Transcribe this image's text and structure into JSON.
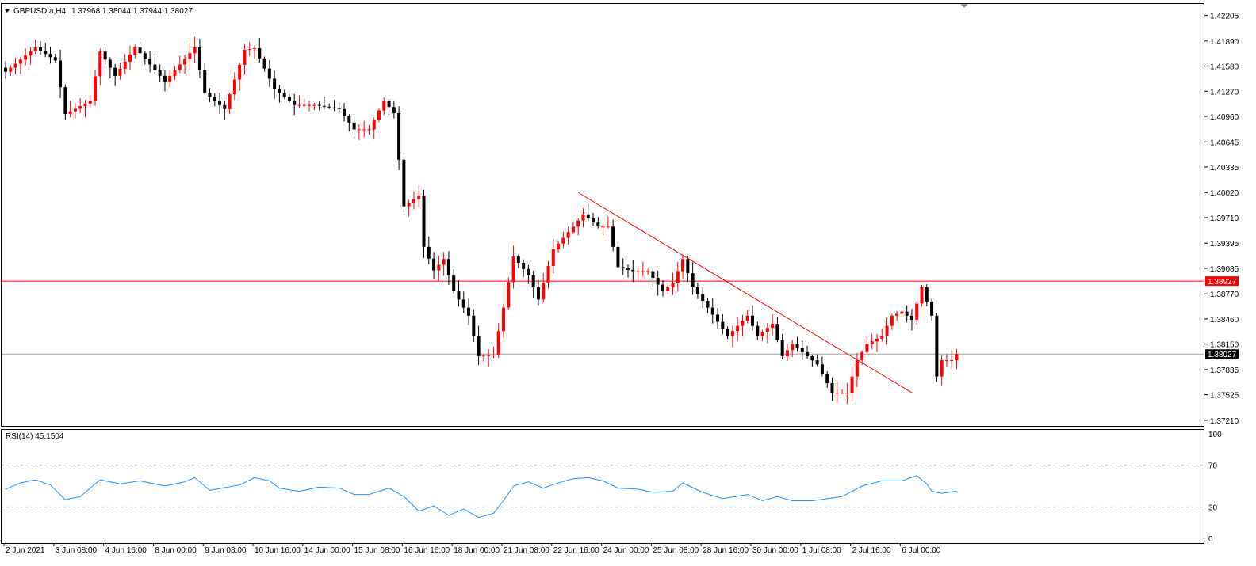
{
  "header": {
    "symbol": "GBPUSD.a,H4",
    "ohlc": "1.37968 1.38044 1.37944 1.38027"
  },
  "rsi": {
    "label": "RSI(14) 45.1504",
    "levels": [
      70,
      30
    ],
    "axis_ticks": [
      "100",
      "70",
      "30",
      "0"
    ]
  },
  "colors": {
    "bull": "#ff0000",
    "bear": "#000000",
    "trendline": "#ff0000",
    "resistance": "#ff0000",
    "price_line": "#9aa4ad",
    "rsi_line": "#1e90ff",
    "frame": "#000000"
  },
  "lines": {
    "resistance_price": 1.38927,
    "resistance_label": "1.38927",
    "current_price": 1.38027,
    "current_label": "1.38027",
    "trendline": {
      "from_bar": 115,
      "from_price": 1.4002,
      "to_bar": 182,
      "to_price": 1.3755
    }
  },
  "chart_data": [
    {
      "type": "candlestick",
      "title": "GBPUSD.a,H4",
      "ylim": [
        1.3715,
        1.4225
      ],
      "y_ticks": [
        "1.42205",
        "1.41890",
        "1.41580",
        "1.41270",
        "1.40960",
        "1.40645",
        "1.40335",
        "1.40020",
        "1.39710",
        "1.39395",
        "1.39085",
        "1.38770",
        "1.38460",
        "1.38150",
        "1.37835",
        "1.37525",
        "1.37210"
      ],
      "x_ticks": [
        "2 Jun 2021",
        "3 Jun 08:00",
        "4 Jun 16:00",
        "8 Jun 00:00",
        "9 Jun 08:00",
        "10 Jun 16:00",
        "14 Jun 00:00",
        "15 Jun 08:00",
        "16 Jun 16:00",
        "18 Jun 00:00",
        "21 Jun 08:00",
        "22 Jun 16:00",
        "24 Jun 00:00",
        "25 Jun 08:00",
        "28 Jun 16:00",
        "30 Jun 00:00",
        "1 Jul 08:00",
        "2 Jul 16:00",
        "6 Jul 00:00"
      ],
      "anchors": [
        [
          0,
          1.4151
        ],
        [
          6,
          1.4181
        ],
        [
          10,
          1.4165
        ],
        [
          12,
          1.4099
        ],
        [
          17,
          1.4115
        ],
        [
          19,
          1.4176
        ],
        [
          22,
          1.4146
        ],
        [
          26,
          1.4181
        ],
        [
          32,
          1.4139
        ],
        [
          38,
          1.4181
        ],
        [
          40,
          1.4125
        ],
        [
          44,
          1.4105
        ],
        [
          48,
          1.4178
        ],
        [
          50,
          1.418
        ],
        [
          54,
          1.413
        ],
        [
          58,
          1.411
        ],
        [
          62,
          1.411
        ],
        [
          67,
          1.4105
        ],
        [
          70,
          1.408
        ],
        [
          73,
          1.408
        ],
        [
          76,
          1.4115
        ],
        [
          78,
          1.41
        ],
        [
          80,
          1.3985
        ],
        [
          83,
          1.3998
        ],
        [
          84,
          1.3935
        ],
        [
          86,
          1.3906
        ],
        [
          88,
          1.392
        ],
        [
          90,
          1.388
        ],
        [
          93,
          1.385
        ],
        [
          95,
          1.38
        ],
        [
          98,
          1.3802
        ],
        [
          100,
          1.386
        ],
        [
          102,
          1.3923
        ],
        [
          105,
          1.39
        ],
        [
          107,
          1.387
        ],
        [
          110,
          1.3932
        ],
        [
          114,
          1.396
        ],
        [
          116,
          1.3975
        ],
        [
          119,
          1.396
        ],
        [
          121,
          1.396
        ],
        [
          123,
          1.391
        ],
        [
          126,
          1.3905
        ],
        [
          129,
          1.3905
        ],
        [
          132,
          1.388
        ],
        [
          134,
          1.389
        ],
        [
          136,
          1.392
        ],
        [
          138,
          1.3885
        ],
        [
          141,
          1.386
        ],
        [
          145,
          1.3825
        ],
        [
          149,
          1.385
        ],
        [
          151,
          1.3825
        ],
        [
          154,
          1.384
        ],
        [
          156,
          1.38
        ],
        [
          158,
          1.3815
        ],
        [
          160,
          1.3805
        ],
        [
          163,
          1.379
        ],
        [
          166,
          1.3755
        ],
        [
          169,
          1.3755
        ],
        [
          171,
          1.3795
        ],
        [
          173,
          1.3815
        ],
        [
          176,
          1.3825
        ],
        [
          178,
          1.385
        ],
        [
          180,
          1.3855
        ],
        [
          182,
          1.3845
        ],
        [
          184,
          1.3885
        ],
        [
          186,
          1.385
        ],
        [
          187,
          1.3775
        ],
        [
          188,
          1.3795
        ],
        [
          190,
          1.3795
        ],
        [
          191,
          1.38027
        ]
      ]
    },
    {
      "type": "line",
      "title": "RSI(14) 45.1504",
      "ylim": [
        0,
        100
      ],
      "anchors": [
        [
          0,
          47
        ],
        [
          3,
          53
        ],
        [
          6,
          56
        ],
        [
          9,
          51
        ],
        [
          12,
          37
        ],
        [
          15,
          40
        ],
        [
          19,
          56
        ],
        [
          23,
          52
        ],
        [
          27,
          55
        ],
        [
          32,
          50
        ],
        [
          36,
          54
        ],
        [
          38,
          58
        ],
        [
          41,
          46
        ],
        [
          47,
          51
        ],
        [
          50,
          58
        ],
        [
          53,
          55
        ],
        [
          55,
          48
        ],
        [
          59,
          45
        ],
        [
          63,
          49
        ],
        [
          67,
          48
        ],
        [
          70,
          42
        ],
        [
          73,
          42
        ],
        [
          77,
          48
        ],
        [
          80,
          40
        ],
        [
          83,
          26
        ],
        [
          86,
          31
        ],
        [
          89,
          22
        ],
        [
          92,
          28
        ],
        [
          95,
          20
        ],
        [
          98,
          24
        ],
        [
          100,
          36
        ],
        [
          102,
          50
        ],
        [
          105,
          54
        ],
        [
          108,
          48
        ],
        [
          111,
          53
        ],
        [
          114,
          57
        ],
        [
          117,
          58
        ],
        [
          120,
          55
        ],
        [
          123,
          48
        ],
        [
          127,
          47
        ],
        [
          130,
          44
        ],
        [
          134,
          45
        ],
        [
          136,
          53
        ],
        [
          140,
          44
        ],
        [
          144,
          38
        ],
        [
          149,
          42
        ],
        [
          152,
          36
        ],
        [
          155,
          40
        ],
        [
          158,
          36
        ],
        [
          162,
          36
        ],
        [
          165,
          38
        ],
        [
          168,
          40
        ],
        [
          172,
          50
        ],
        [
          176,
          55
        ],
        [
          180,
          55
        ],
        [
          183,
          60
        ],
        [
          185,
          52
        ],
        [
          186,
          45
        ],
        [
          188,
          43
        ],
        [
          191,
          45.15
        ]
      ]
    }
  ]
}
